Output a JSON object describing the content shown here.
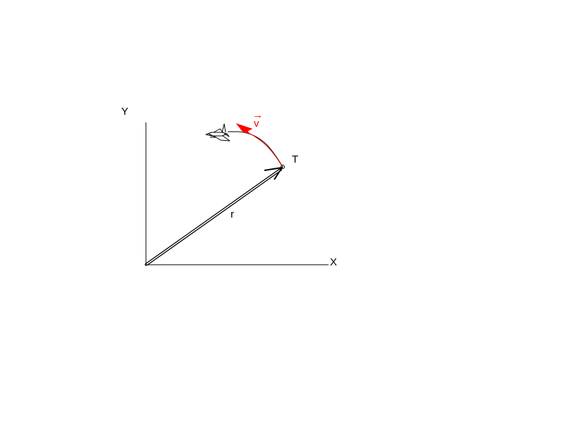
{
  "axes": {
    "x_label": "X",
    "y_label": "Y"
  },
  "vectors": {
    "position_label": "r",
    "velocity_label": "v",
    "velocity_arrow_glyph": "→"
  },
  "point": {
    "label": "T"
  },
  "colors": {
    "ink": "#000000",
    "velocity": "#ff0000",
    "background": "#ffffff"
  },
  "icons": {
    "airplane": "airplane-icon"
  }
}
